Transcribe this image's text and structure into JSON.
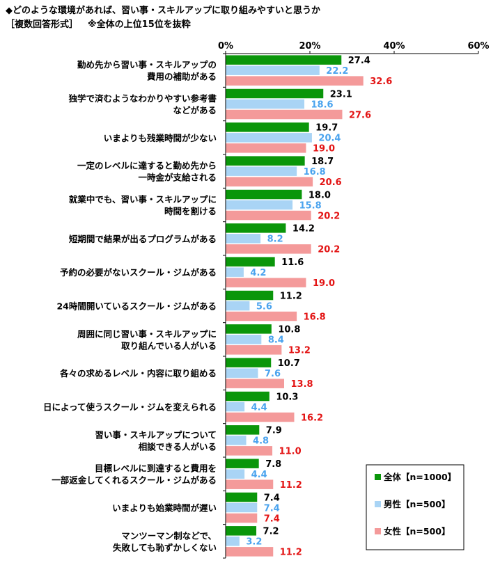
{
  "chart_data": {
    "type": "bar",
    "orientation": "horizontal",
    "title": "◆どのような環境があれば、習い事・スキルアップに取り組みやすいと思うか",
    "subtitle": "［複数回答形式］",
    "note": "※全体の上位15位を抜粋",
    "xlim": [
      0,
      60
    ],
    "xticks": [
      "0%",
      "20%",
      "40%",
      "60%"
    ],
    "categories": [
      [
        "勤め先から習い事・スキルアップの",
        "費用の補助がある"
      ],
      [
        "独学で済むようなわかりやすい参考書",
        "などがある"
      ],
      [
        "いまよりも残業時間が少ない"
      ],
      [
        "一定のレベルに達すると勤め先から",
        "一時金が支給される"
      ],
      [
        "就業中でも、習い事・スキルアップに",
        "時間を割ける"
      ],
      [
        "短期間で結果が出るプログラムがある"
      ],
      [
        "予約の必要がないスクール・ジムがある"
      ],
      [
        "24時間開いているスクール・ジムがある"
      ],
      [
        "周囲に同じ習い事・スキルアップに",
        "取り組んでいる人がいる"
      ],
      [
        "各々の求めるレベル・内容に取り組める"
      ],
      [
        "日によって使うスクール・ジムを変えられる"
      ],
      [
        "習い事・スキルアップについて",
        "相談できる人がいる"
      ],
      [
        "目標レベルに到達すると費用を",
        "一部返金してくれるスクール・ジムがある"
      ],
      [
        "いまよりも始業時間が遅い"
      ],
      [
        "マンツーマン制などで、",
        "失敗しても恥ずかしくない"
      ]
    ],
    "series": [
      {
        "name": "全体【n=1000】",
        "color": "#0a960a",
        "label_color": "#000000",
        "values": [
          27.4,
          23.1,
          19.7,
          18.7,
          18.0,
          14.2,
          11.6,
          11.2,
          10.8,
          10.7,
          10.3,
          7.9,
          7.8,
          7.4,
          7.2
        ]
      },
      {
        "name": "男性【n=500】",
        "color": "#a9d4f5",
        "label_color": "#4aa3ee",
        "values": [
          22.2,
          18.6,
          20.4,
          16.8,
          15.8,
          8.2,
          4.2,
          5.6,
          8.4,
          7.6,
          4.4,
          4.8,
          4.4,
          7.4,
          3.2
        ]
      },
      {
        "name": "女性【n=500】",
        "color": "#f49a9a",
        "label_color": "#e31414",
        "values": [
          32.6,
          27.6,
          19.0,
          20.6,
          20.2,
          20.2,
          19.0,
          16.8,
          13.2,
          13.8,
          16.2,
          11.0,
          11.2,
          7.4,
          11.2
        ]
      }
    ],
    "legend_position": "bottom-right",
    "grid": false
  }
}
